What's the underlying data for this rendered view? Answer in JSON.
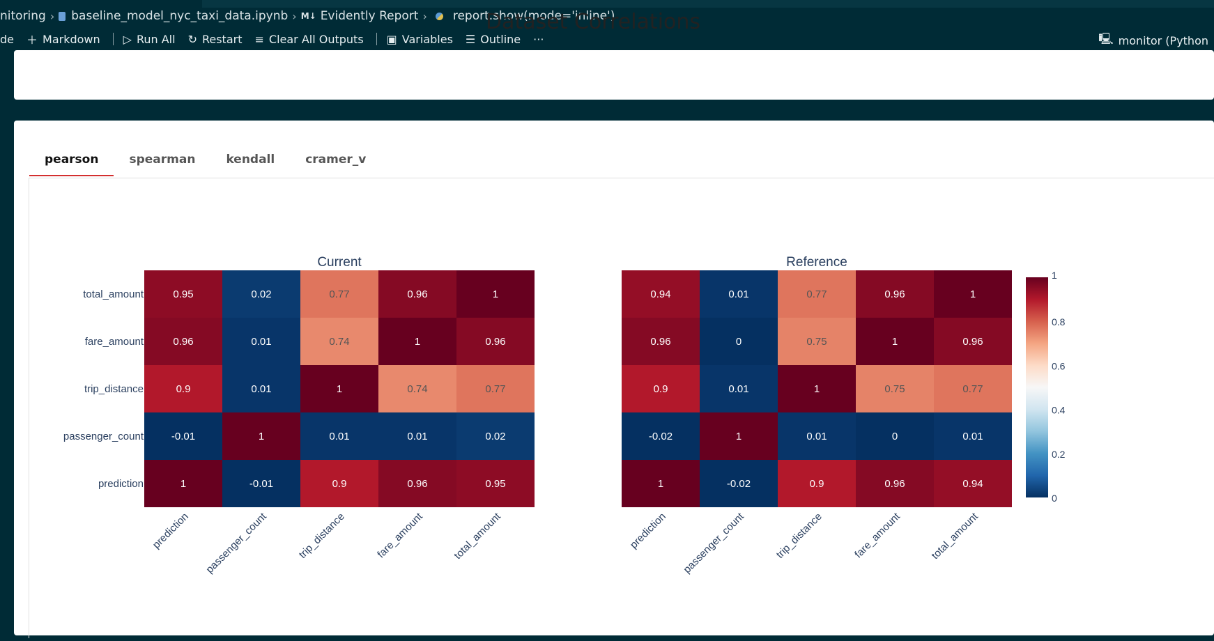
{
  "breadcrumb": {
    "segments": [
      "nitoring",
      "baseline_model_nyc_taxi_data.ipynb",
      "Evidently Report",
      "report.show(mode='inline')"
    ],
    "md_badge": "M↓"
  },
  "toolbar": {
    "left_text": "de",
    "markdown": "Markdown",
    "run_all": "Run All",
    "restart": "Restart",
    "clear_outputs": "Clear All Outputs",
    "variables": "Variables",
    "outline": "Outline",
    "more": "···",
    "kernel": "monitor (Python"
  },
  "report": {
    "title": "Dataset Correlations",
    "tabs": [
      "pearson",
      "spearman",
      "kendall",
      "cramer_v"
    ],
    "active_tab": "pearson"
  },
  "chart_data": [
    {
      "type": "heatmap",
      "title": "Current",
      "x_labels": [
        "prediction",
        "passenger_count",
        "trip_distance",
        "fare_amount",
        "total_amount"
      ],
      "y_labels": [
        "total_amount",
        "fare_amount",
        "trip_distance",
        "passenger_count",
        "prediction"
      ],
      "values": [
        [
          0.95,
          0.02,
          0.77,
          0.96,
          1.0
        ],
        [
          0.96,
          0.01,
          0.74,
          1.0,
          0.96
        ],
        [
          0.9,
          0.01,
          1.0,
          0.74,
          0.77
        ],
        [
          -0.01,
          1.0,
          0.01,
          0.01,
          0.02
        ],
        [
          1.0,
          -0.01,
          0.9,
          0.96,
          0.95
        ]
      ]
    },
    {
      "type": "heatmap",
      "title": "Reference",
      "x_labels": [
        "prediction",
        "passenger_count",
        "trip_distance",
        "fare_amount",
        "total_amount"
      ],
      "y_labels": [
        "total_amount",
        "fare_amount",
        "trip_distance",
        "passenger_count",
        "prediction"
      ],
      "values": [
        [
          0.94,
          0.01,
          0.77,
          0.96,
          1.0
        ],
        [
          0.96,
          0.0,
          0.75,
          1.0,
          0.96
        ],
        [
          0.9,
          0.01,
          1.0,
          0.75,
          0.77
        ],
        [
          -0.02,
          1.0,
          0.01,
          0.0,
          0.01
        ],
        [
          1.0,
          -0.02,
          0.9,
          0.96,
          0.94
        ]
      ]
    }
  ],
  "colorbar": {
    "ticks": [
      "1",
      "0.8",
      "0.6",
      "0.4",
      "0.2",
      "0"
    ],
    "range": [
      0,
      1
    ],
    "colorscale": [
      "#053061",
      "#2166ac",
      "#4393c3",
      "#92c5de",
      "#d1e5f0",
      "#f7f7f7",
      "#fddbc7",
      "#f4a582",
      "#d6604d",
      "#b2182b",
      "#67001f"
    ]
  }
}
